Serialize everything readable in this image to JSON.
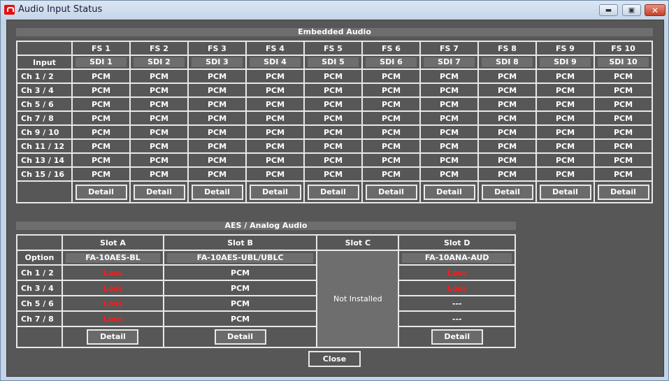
{
  "window": {
    "title": "Audio Input Status"
  },
  "embedded": {
    "title": "Embedded Audio",
    "input_label": "Input",
    "columns": [
      {
        "fs": "FS 1",
        "input": "SDI 1"
      },
      {
        "fs": "FS 2",
        "input": "SDI 2"
      },
      {
        "fs": "FS 3",
        "input": "SDI 3"
      },
      {
        "fs": "FS 4",
        "input": "SDI 4"
      },
      {
        "fs": "FS 5",
        "input": "SDI 5"
      },
      {
        "fs": "FS 6",
        "input": "SDI 6"
      },
      {
        "fs": "FS 7",
        "input": "SDI 7"
      },
      {
        "fs": "FS 8",
        "input": "SDI 8"
      },
      {
        "fs": "FS 9",
        "input": "SDI 9"
      },
      {
        "fs": "FS 10",
        "input": "SDI 10"
      }
    ],
    "rows": [
      {
        "label": "Ch 1 / 2",
        "values": [
          "PCM",
          "PCM",
          "PCM",
          "PCM",
          "PCM",
          "PCM",
          "PCM",
          "PCM",
          "PCM",
          "PCM"
        ]
      },
      {
        "label": "Ch 3 / 4",
        "values": [
          "PCM",
          "PCM",
          "PCM",
          "PCM",
          "PCM",
          "PCM",
          "PCM",
          "PCM",
          "PCM",
          "PCM"
        ]
      },
      {
        "label": "Ch 5 / 6",
        "values": [
          "PCM",
          "PCM",
          "PCM",
          "PCM",
          "PCM",
          "PCM",
          "PCM",
          "PCM",
          "PCM",
          "PCM"
        ]
      },
      {
        "label": "Ch 7 / 8",
        "values": [
          "PCM",
          "PCM",
          "PCM",
          "PCM",
          "PCM",
          "PCM",
          "PCM",
          "PCM",
          "PCM",
          "PCM"
        ]
      },
      {
        "label": "Ch 9 / 10",
        "values": [
          "PCM",
          "PCM",
          "PCM",
          "PCM",
          "PCM",
          "PCM",
          "PCM",
          "PCM",
          "PCM",
          "PCM"
        ]
      },
      {
        "label": "Ch 11 / 12",
        "values": [
          "PCM",
          "PCM",
          "PCM",
          "PCM",
          "PCM",
          "PCM",
          "PCM",
          "PCM",
          "PCM",
          "PCM"
        ]
      },
      {
        "label": "Ch 13 / 14",
        "values": [
          "PCM",
          "PCM",
          "PCM",
          "PCM",
          "PCM",
          "PCM",
          "PCM",
          "PCM",
          "PCM",
          "PCM"
        ]
      },
      {
        "label": "Ch 15 / 16",
        "values": [
          "PCM",
          "PCM",
          "PCM",
          "PCM",
          "PCM",
          "PCM",
          "PCM",
          "PCM",
          "PCM",
          "PCM"
        ]
      }
    ],
    "detail_label": "Detail"
  },
  "aes": {
    "title": "AES / Analog Audio",
    "option_label": "Option",
    "row_labels": [
      "Ch 1 / 2",
      "Ch 3 / 4",
      "Ch 5 / 6",
      "Ch 7 / 8"
    ],
    "slots": [
      {
        "name": "Slot A",
        "option": "FA-10AES-BL",
        "values": [
          "Loss",
          "Loss",
          "Loss",
          "Loss"
        ],
        "installed": true
      },
      {
        "name": "Slot B",
        "option": "FA-10AES-UBL/UBLC",
        "values": [
          "PCM",
          "PCM",
          "PCM",
          "PCM"
        ],
        "installed": true
      },
      {
        "name": "Slot C",
        "installed": false,
        "status": "Not Installed"
      },
      {
        "name": "Slot D",
        "option": "FA-10ANA-AUD",
        "values": [
          "Loss",
          "Loss",
          "---",
          "---"
        ],
        "installed": true
      }
    ],
    "detail_label": "Detail"
  },
  "close_label": "Close",
  "colors": {
    "background": "#575757",
    "loss": "#ff1a1a",
    "grid": "#e8e8e8"
  }
}
